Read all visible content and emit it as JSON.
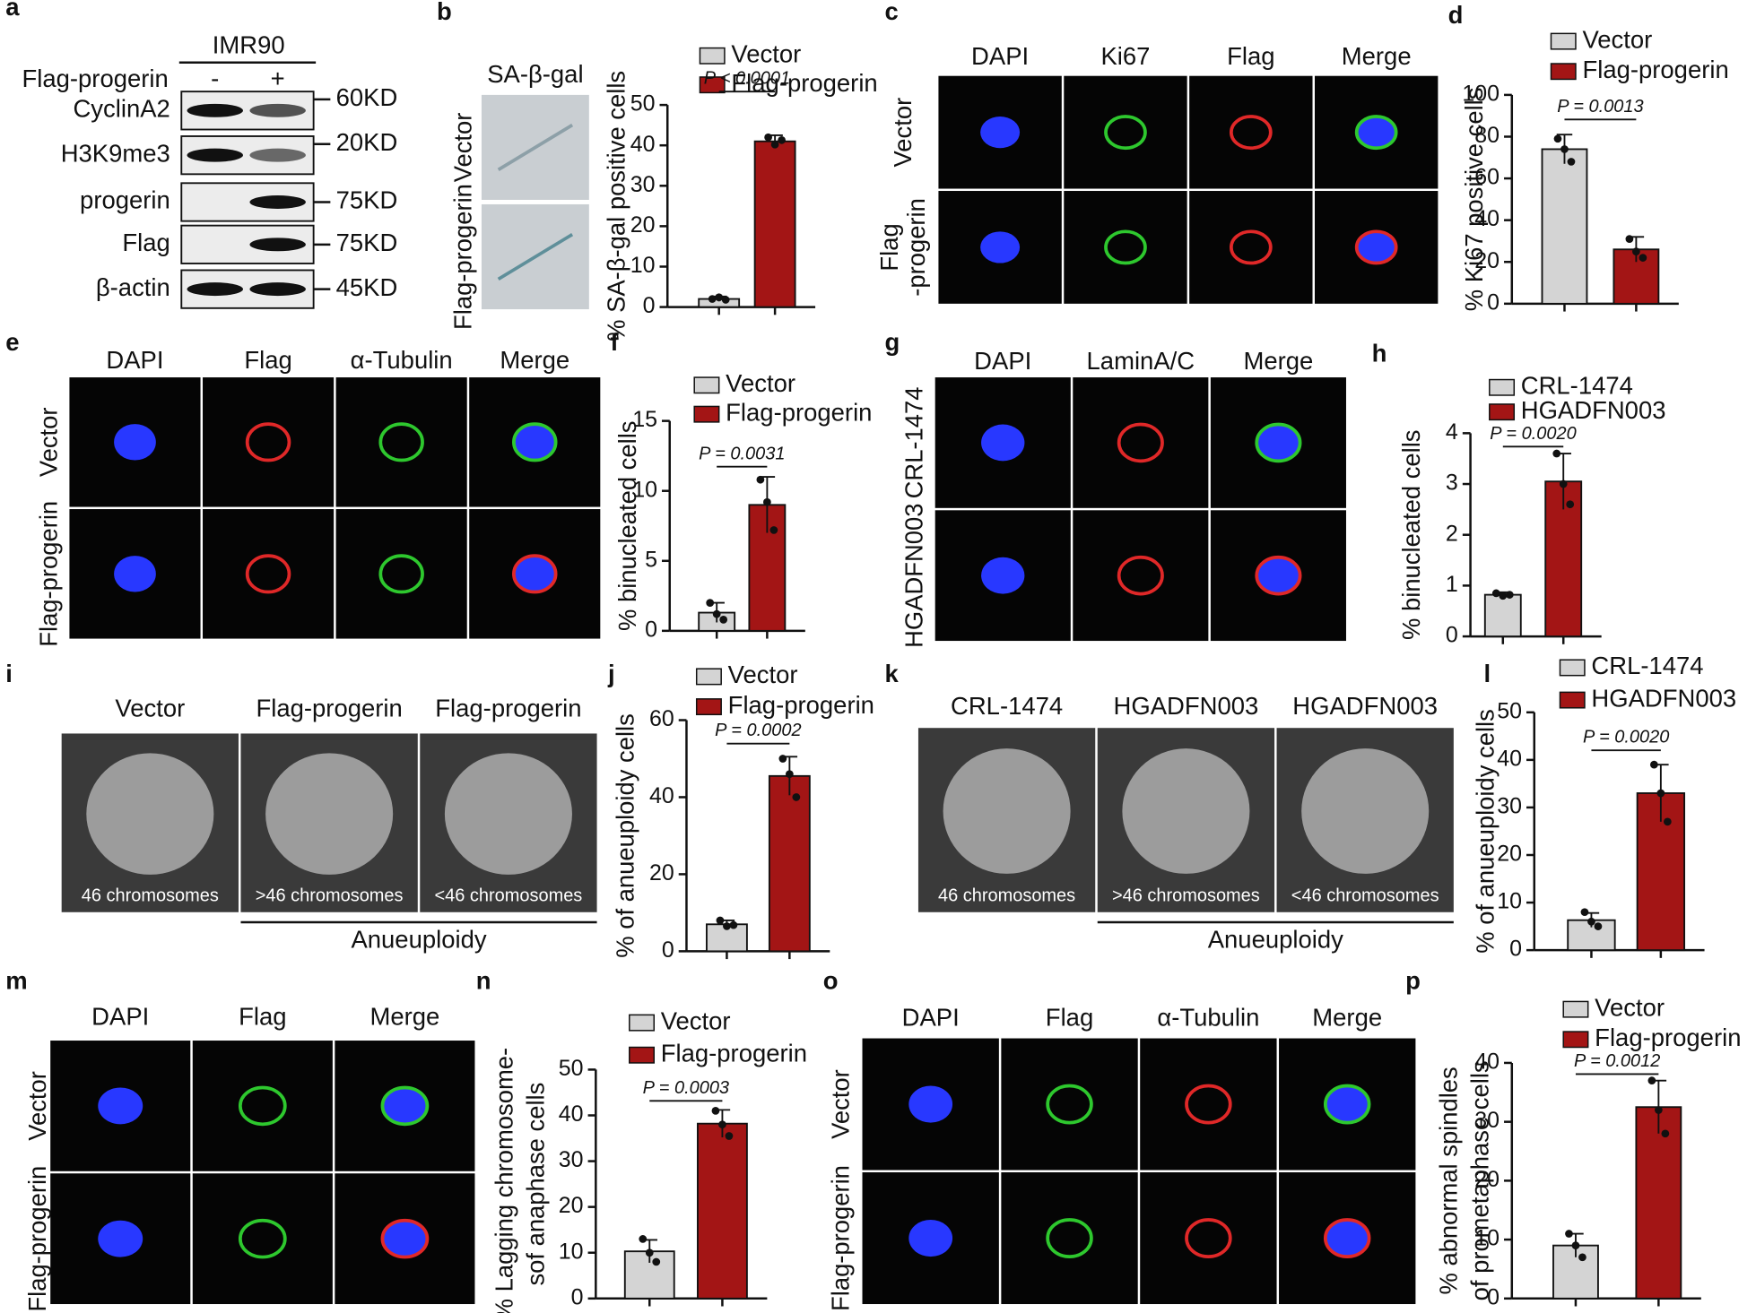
{
  "chart_data": [
    {
      "type": "bar",
      "panel": "b",
      "ylabel": [
        "% SA-β-gal positive cells"
      ],
      "ylim": [
        0,
        50
      ],
      "yticks": [
        0,
        10,
        20,
        30,
        40,
        50
      ],
      "annotation": "P < 0.0001",
      "series": [
        {
          "name": "Vector",
          "color": "#d4d4d4",
          "values": [
            2
          ],
          "errors": [
            0.6
          ],
          "points": [
            2.0,
            2.4,
            1.8
          ]
        },
        {
          "name": "Flag-progerin",
          "color": "#a31515",
          "values": [
            41
          ],
          "errors": [
            1.5
          ],
          "points": [
            42,
            40.2,
            41.3
          ]
        }
      ]
    },
    {
      "type": "bar",
      "panel": "d",
      "ylabel": [
        "% Ki67 positive cells"
      ],
      "ylim": [
        0,
        100
      ],
      "yticks": [
        0,
        20,
        40,
        60,
        80,
        100
      ],
      "annotation": "P = 0.0013",
      "series": [
        {
          "name": "Vector",
          "color": "#d4d4d4",
          "values": [
            74
          ],
          "errors": [
            7
          ],
          "points": [
            79,
            74,
            68
          ]
        },
        {
          "name": "Flag-progerin",
          "color": "#a31515",
          "values": [
            26
          ],
          "errors": [
            6
          ],
          "points": [
            31,
            25,
            22
          ]
        }
      ]
    },
    {
      "type": "bar",
      "panel": "f",
      "ylabel": [
        "% binucleated cells"
      ],
      "ylim": [
        0,
        15
      ],
      "yticks": [
        0,
        5,
        10,
        15
      ],
      "annotation": "P = 0.0031",
      "series": [
        {
          "name": "Vector",
          "color": "#d4d4d4",
          "values": [
            1.3
          ],
          "errors": [
            0.7
          ],
          "points": [
            2.0,
            1.2,
            0.8
          ]
        },
        {
          "name": "Flag-progerin",
          "color": "#a31515",
          "values": [
            9
          ],
          "errors": [
            2
          ],
          "points": [
            10.8,
            9.2,
            7.2
          ]
        }
      ]
    },
    {
      "type": "bar",
      "panel": "h",
      "ylabel": [
        "% binucleated cells"
      ],
      "ylim": [
        0,
        4
      ],
      "yticks": [
        0,
        1,
        2,
        3,
        4
      ],
      "annotation": "P = 0.0020",
      "series": [
        {
          "name": "CRL-1474",
          "color": "#d4d4d4",
          "values": [
            0.82
          ],
          "errors": [
            0.05
          ],
          "points": [
            0.85,
            0.8,
            0.82
          ]
        },
        {
          "name": "HGADFN003",
          "color": "#a31515",
          "values": [
            3.05
          ],
          "errors": [
            0.55
          ],
          "points": [
            3.6,
            3.0,
            2.6
          ]
        }
      ]
    },
    {
      "type": "bar",
      "panel": "j",
      "ylabel": [
        "% of anueuploidy cells"
      ],
      "ylim": [
        0,
        60
      ],
      "yticks": [
        0,
        20,
        40,
        60
      ],
      "annotation": "P = 0.0002",
      "series": [
        {
          "name": "Vector",
          "color": "#d4d4d4",
          "values": [
            7
          ],
          "errors": [
            1
          ],
          "points": [
            8,
            6.5,
            6.8
          ]
        },
        {
          "name": "Flag-progerin",
          "color": "#a31515",
          "values": [
            45.5
          ],
          "errors": [
            5
          ],
          "points": [
            50,
            46,
            40
          ]
        }
      ]
    },
    {
      "type": "bar",
      "panel": "l",
      "ylabel": [
        "% of anueuploidy cells"
      ],
      "ylim": [
        0,
        50
      ],
      "yticks": [
        0,
        10,
        20,
        30,
        40,
        50
      ],
      "annotation": "P = 0.0020",
      "series": [
        {
          "name": "CRL-1474",
          "color": "#d4d4d4",
          "values": [
            6.3
          ],
          "errors": [
            1.5
          ],
          "points": [
            8,
            6,
            5
          ]
        },
        {
          "name": "HGADFN003",
          "color": "#a31515",
          "values": [
            33
          ],
          "errors": [
            6
          ],
          "points": [
            39,
            33,
            27
          ]
        }
      ]
    },
    {
      "type": "bar",
      "panel": "n",
      "ylabel": [
        "% Lagging chromosome-",
        "sof anaphase cells"
      ],
      "ylim": [
        0,
        50
      ],
      "yticks": [
        0,
        10,
        20,
        30,
        40,
        50
      ],
      "annotation": "P = 0.0003",
      "series": [
        {
          "name": "Vector",
          "color": "#d4d4d4",
          "values": [
            10.3
          ],
          "errors": [
            2.5
          ],
          "points": [
            13,
            10,
            8
          ]
        },
        {
          "name": "Flag-progerin",
          "color": "#a31515",
          "values": [
            38.2
          ],
          "errors": [
            3
          ],
          "points": [
            41,
            38,
            35.5
          ]
        }
      ]
    },
    {
      "type": "bar",
      "panel": "p",
      "ylabel": [
        "% abnormal spindles",
        "of prometaphase cells"
      ],
      "ylim": [
        0,
        40
      ],
      "yticks": [
        0,
        10,
        20,
        30,
        40
      ],
      "annotation": "P = 0.0012",
      "series": [
        {
          "name": "Vector",
          "color": "#d4d4d4",
          "values": [
            9
          ],
          "errors": [
            2
          ],
          "points": [
            11,
            9,
            7
          ]
        },
        {
          "name": "Flag-progerin",
          "color": "#a31515",
          "values": [
            32.5
          ],
          "errors": [
            4.5
          ],
          "points": [
            37,
            32,
            28
          ]
        }
      ]
    }
  ],
  "figure": {
    "blot": {
      "letter": "a",
      "header": "IMR90",
      "row_header": "Flag-progerin",
      "lanes": [
        "-",
        "+"
      ],
      "rows": [
        "CyclinA2",
        "H3K9me3",
        "progerin",
        "Flag",
        "β-actin"
      ],
      "sizes": [
        "60KD",
        "20KD",
        "75KD",
        "75KD",
        "45KD"
      ]
    },
    "images": [
      {
        "columns": [
          "SA-β-gal"
        ],
        "rows": [
          [
            "Vector"
          ],
          [
            "Flag-progerin"
          ]
        ]
      },
      {
        "letter": "c",
        "columns": [
          "DAPI",
          "Ki67",
          "Flag",
          "Merge"
        ],
        "rows": [
          [
            "Vector"
          ],
          [
            "Flag",
            "-progerin"
          ]
        ]
      },
      {
        "letter": "e",
        "columns": [
          "DAPI",
          "Flag",
          "α-Tubulin",
          "Merge"
        ],
        "rows": [
          [
            "Vector"
          ],
          [
            "Flag-progerin"
          ]
        ]
      },
      {
        "letter": "g",
        "columns": [
          "DAPI",
          "LaminA/C",
          "Merge"
        ],
        "rows": [
          [
            "CRL-1474"
          ],
          [
            "HGADFN003"
          ]
        ]
      },
      {
        "letter": "i",
        "columns": [
          "Vector",
          "Flag-progerin",
          "Flag-progerin"
        ],
        "captions": [
          "46 chromosomes",
          ">46 chromosomes",
          "<46 chromosomes"
        ],
        "group": "Anueuploidy"
      },
      {
        "letter": "k",
        "columns": [
          "CRL-1474",
          "HGADFN003",
          "HGADFN003"
        ],
        "captions": [
          "46 chromosomes",
          ">46 chromosomes",
          "<46 chromosomes"
        ],
        "group": "Anueuploidy"
      },
      {
        "letter": "m",
        "columns": [
          "DAPI",
          "Flag",
          "Merge"
        ],
        "rows": [
          [
            "Vector"
          ],
          [
            "Flag-progerin"
          ]
        ]
      },
      {
        "letter": "o",
        "columns": [
          "DAPI",
          "Flag",
          "α-Tubulin",
          "Merge"
        ],
        "rows": [
          [
            "Vector"
          ],
          [
            "Flag-progerin"
          ]
        ]
      }
    ]
  }
}
